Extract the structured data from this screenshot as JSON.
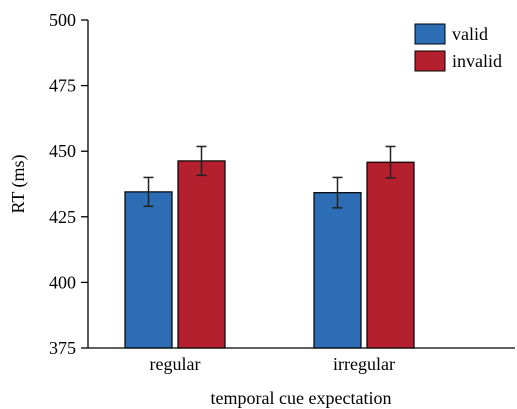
{
  "chart_data": {
    "type": "bar",
    "xlabel": "temporal cue expectation",
    "ylabel": "RT (ms)",
    "ylim": [
      375,
      500
    ],
    "yticks": [
      375,
      400,
      425,
      450,
      475,
      500
    ],
    "categories": [
      "regular",
      "irregular"
    ],
    "series": [
      {
        "name": "valid",
        "color": "#2d6db5",
        "values": [
          434.5,
          434.2
        ],
        "error": [
          5.5,
          5.8
        ]
      },
      {
        "name": "invalid",
        "color": "#b5202e",
        "values": [
          446.3,
          445.8
        ],
        "error": [
          5.5,
          6.0
        ]
      }
    ],
    "legend_position": "top-right",
    "grid": false
  }
}
